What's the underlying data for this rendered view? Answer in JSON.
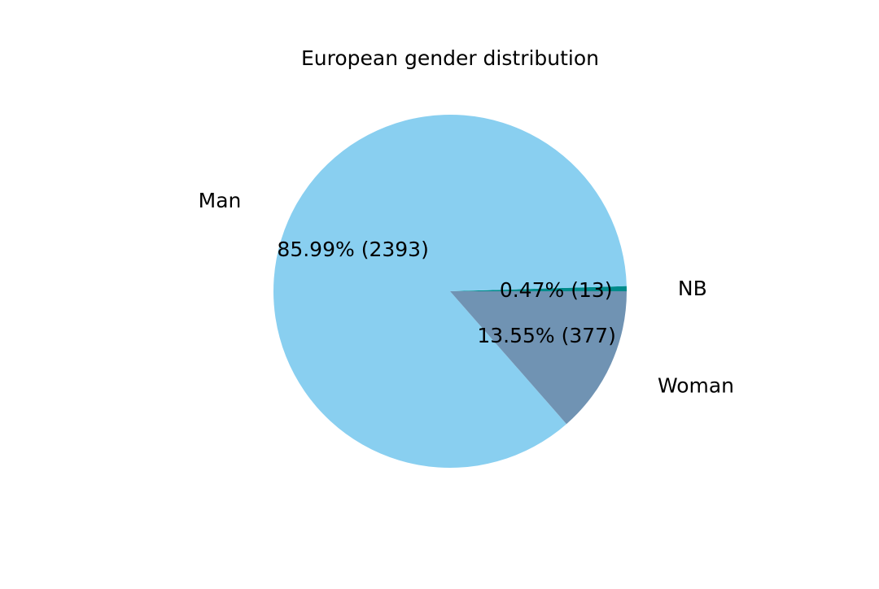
{
  "chart_data": {
    "type": "pie",
    "title": "European gender distribution",
    "slices": [
      {
        "label": "NB",
        "value": 13,
        "percent_label": "0.47%  (13)",
        "color": "#008b8b"
      },
      {
        "label": "Woman",
        "value": 377,
        "percent_label": "13.55%  (377)",
        "color": "#7093b3"
      },
      {
        "label": "Man",
        "value": 2393,
        "percent_label": "85.99%  (2393)",
        "color": "#89cff0"
      }
    ]
  }
}
